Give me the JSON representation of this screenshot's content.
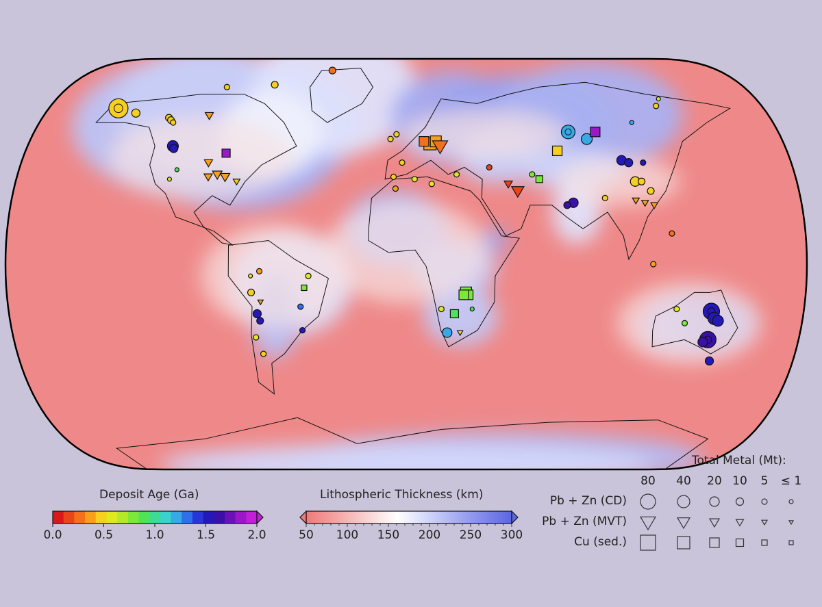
{
  "map": {
    "projection": "Robinson",
    "background_color": "#c9c4d9",
    "regions_thick_lithosphere": [
      "North America",
      "Greenland",
      "Scandinavia",
      "Russia",
      "Siberia",
      "West Africa",
      "Congo",
      "Southern Africa",
      "Amazonia",
      "India",
      "Australia",
      "Antarctica"
    ]
  },
  "legend_age": {
    "title": "Deposit Age (Ga)",
    "ticks": [
      "0.0",
      "0.5",
      "1.0",
      "1.5",
      "2.0"
    ],
    "colors": [
      "#d7191c",
      "#e8451a",
      "#f3711a",
      "#f8a01c",
      "#f6cf1f",
      "#dfe820",
      "#b2ea2a",
      "#7ee83a",
      "#4fe35a",
      "#3ddc94",
      "#3ad2cb",
      "#36a9e6",
      "#2f6fe8",
      "#2836d8",
      "#2418b8",
      "#3a10a8",
      "#6a12b8",
      "#9a18c8",
      "#c020d8"
    ]
  },
  "legend_thickness": {
    "title": "Lithospheric Thickness (km)",
    "ticks": [
      "50",
      "100",
      "150",
      "200",
      "250",
      "300"
    ],
    "colors": [
      "#ef7a7a",
      "#f39a9a",
      "#f7bcbc",
      "#fbdede",
      "#ffffff",
      "#dde0fb",
      "#bbc0f5",
      "#99a0ee",
      "#7a82e8",
      "#5d66e0"
    ]
  },
  "legend_metal": {
    "title": "Total Metal (Mt):",
    "columns": [
      "80",
      "40",
      "20",
      "10",
      "5",
      "≤ 1"
    ],
    "rows": [
      {
        "label": "Pb + Zn (CD)",
        "shape": "circle"
      },
      {
        "label": "Pb + Zn (MVT)",
        "shape": "triangle"
      },
      {
        "label": "Cu (sed.)",
        "shape": "square"
      }
    ]
  },
  "deposits": [
    {
      "shape": "circle",
      "age": 0.45,
      "size": 14,
      "lon": -160,
      "lat": 66
    },
    {
      "shape": "circle",
      "age": 0.45,
      "size": 6,
      "lon": -148,
      "lat": 64
    },
    {
      "shape": "circle",
      "age": 0.4,
      "size": 5,
      "lon": -128,
      "lat": 62
    },
    {
      "shape": "circle",
      "age": 0.4,
      "size": 5,
      "lon": -126,
      "lat": 61
    },
    {
      "shape": "circle",
      "age": 0.4,
      "size": 4,
      "lon": -124,
      "lat": 60
    },
    {
      "shape": "circle",
      "age": 1.5,
      "size": 8,
      "lon": -117,
      "lat": 50
    },
    {
      "shape": "circle",
      "age": 1.5,
      "size": 6,
      "lon": -116,
      "lat": 49
    },
    {
      "shape": "triangle",
      "age": 0.35,
      "size": 6,
      "lon": -107,
      "lat": 63
    },
    {
      "shape": "triangle",
      "age": 0.35,
      "size": 7,
      "lon": -90,
      "lat": 38
    },
    {
      "shape": "triangle",
      "age": 0.35,
      "size": 7,
      "lon": -86,
      "lat": 37
    },
    {
      "shape": "triangle",
      "age": 0.3,
      "size": 6,
      "lon": -94,
      "lat": 37
    },
    {
      "shape": "triangle",
      "age": 0.4,
      "size": 5,
      "lon": -80,
      "lat": 35
    },
    {
      "shape": "square",
      "age": 1.85,
      "size": 6,
      "lon": -89,
      "lat": 47
    },
    {
      "shape": "circle",
      "age": 0.2,
      "size": 5,
      "lon": -48,
      "lat": 82
    },
    {
      "shape": "circle",
      "age": 0.4,
      "size": 5,
      "lon": -80,
      "lat": 76
    },
    {
      "shape": "circle",
      "age": 0.45,
      "size": 4,
      "lon": -108,
      "lat": 75
    },
    {
      "shape": "circle",
      "age": 0.9,
      "size": 3,
      "lon": -110,
      "lat": 40
    },
    {
      "shape": "circle",
      "age": 0.5,
      "size": 3,
      "lon": -112,
      "lat": 36
    },
    {
      "shape": "triangle",
      "age": 0.3,
      "size": 6,
      "lon": -96,
      "lat": 43
    },
    {
      "shape": "square",
      "age": 0.3,
      "size": 9,
      "lon": 12,
      "lat": 51
    },
    {
      "shape": "square",
      "age": 0.3,
      "size": 8,
      "lon": 15,
      "lat": 52
    },
    {
      "shape": "square",
      "age": 0.25,
      "size": 7,
      "lon": 9,
      "lat": 52
    },
    {
      "shape": "triangle",
      "age": 0.2,
      "size": 11,
      "lon": 17,
      "lat": 50
    },
    {
      "shape": "circle",
      "age": 0.4,
      "size": 4,
      "lon": -5,
      "lat": 55
    },
    {
      "shape": "circle",
      "age": 0.4,
      "size": 4,
      "lon": -8,
      "lat": 53
    },
    {
      "shape": "circle",
      "age": 0.4,
      "size": 4,
      "lon": -2,
      "lat": 43
    },
    {
      "shape": "circle",
      "age": 0.4,
      "size": 4,
      "lon": -6,
      "lat": 37
    },
    {
      "shape": "circle",
      "age": 0.3,
      "size": 4,
      "lon": -5,
      "lat": 32
    },
    {
      "shape": "circle",
      "age": 0.1,
      "size": 4,
      "lon": 40,
      "lat": 41
    },
    {
      "shape": "triangle",
      "age": 0.1,
      "size": 9,
      "lon": 52,
      "lat": 31
    },
    {
      "shape": "triangle",
      "age": 0.1,
      "size": 6,
      "lon": 48,
      "lat": 34
    },
    {
      "shape": "circle",
      "age": 0.5,
      "size": 4,
      "lon": 24,
      "lat": 38
    },
    {
      "shape": "circle",
      "age": 0.8,
      "size": 4,
      "lon": 60,
      "lat": 38
    },
    {
      "shape": "square",
      "age": 0.8,
      "size": 5,
      "lon": 63,
      "lat": 36
    },
    {
      "shape": "circle",
      "age": 1.2,
      "size": 10,
      "lon": 84,
      "lat": 56
    },
    {
      "shape": "circle",
      "age": 1.2,
      "size": 8,
      "lon": 92,
      "lat": 53
    },
    {
      "shape": "square",
      "age": 1.85,
      "size": 7,
      "lon": 98,
      "lat": 56
    },
    {
      "shape": "square",
      "age": 0.4,
      "size": 7,
      "lon": 75,
      "lat": 48
    },
    {
      "shape": "circle",
      "age": 1.6,
      "size": 7,
      "lon": 105,
      "lat": 44
    },
    {
      "shape": "circle",
      "age": 1.6,
      "size": 6,
      "lon": 108,
      "lat": 43
    },
    {
      "shape": "circle",
      "age": 1.5,
      "size": 4,
      "lon": 115,
      "lat": 43
    },
    {
      "shape": "circle",
      "age": 0.4,
      "size": 7,
      "lon": 108,
      "lat": 35
    },
    {
      "shape": "circle",
      "age": 0.4,
      "size": 5,
      "lon": 111,
      "lat": 35
    },
    {
      "shape": "circle",
      "age": 0.4,
      "size": 5,
      "lon": 114,
      "lat": 31
    },
    {
      "shape": "triangle",
      "age": 0.3,
      "size": 5,
      "lon": 106,
      "lat": 27
    },
    {
      "shape": "triangle",
      "age": 0.3,
      "size": 5,
      "lon": 110,
      "lat": 26
    },
    {
      "shape": "triangle",
      "age": 0.3,
      "size": 5,
      "lon": 114,
      "lat": 25
    },
    {
      "shape": "circle",
      "age": 1.7,
      "size": 7,
      "lon": 77,
      "lat": 26
    },
    {
      "shape": "circle",
      "age": 1.7,
      "size": 5,
      "lon": 74,
      "lat": 25
    },
    {
      "shape": "circle",
      "age": 0.4,
      "size": 4,
      "lon": 92,
      "lat": 28
    },
    {
      "shape": "circle",
      "age": 0.3,
      "size": 4,
      "lon": 111,
      "lat": 0
    },
    {
      "shape": "circle",
      "age": 0.2,
      "size": 4,
      "lon": 120,
      "lat": 13
    },
    {
      "shape": "circle",
      "age": 1.6,
      "size": 12,
      "lon": 139,
      "lat": -20
    },
    {
      "shape": "circle",
      "age": 1.6,
      "size": 9,
      "lon": 141,
      "lat": -23
    },
    {
      "shape": "circle",
      "age": 1.6,
      "size": 8,
      "lon": 143,
      "lat": -24
    },
    {
      "shape": "circle",
      "age": 1.7,
      "size": 12,
      "lon": 141,
      "lat": -32
    },
    {
      "shape": "circle",
      "age": 1.7,
      "size": 7,
      "lon": 139,
      "lat": -33
    },
    {
      "shape": "circle",
      "age": 1.5,
      "size": 6,
      "lon": 146,
      "lat": -41
    },
    {
      "shape": "circle",
      "age": 0.8,
      "size": 4,
      "lon": 128,
      "lat": -25
    },
    {
      "shape": "circle",
      "age": 0.6,
      "size": 4,
      "lon": 123,
      "lat": -19
    },
    {
      "shape": "square",
      "age": 0.75,
      "size": 8,
      "lon": 27,
      "lat": -12
    },
    {
      "shape": "square",
      "age": 0.75,
      "size": 7,
      "lon": 28,
      "lat": -13
    },
    {
      "shape": "square",
      "age": 0.75,
      "size": 7,
      "lon": 26,
      "lat": -13
    },
    {
      "shape": "square",
      "age": 0.9,
      "size": 6,
      "lon": 22,
      "lat": -21
    },
    {
      "shape": "circle",
      "age": 1.2,
      "size": 7,
      "lon": 19,
      "lat": -29
    },
    {
      "shape": "circle",
      "age": 0.6,
      "size": 4,
      "lon": 16,
      "lat": -19
    },
    {
      "shape": "circle",
      "age": 0.9,
      "size": 3,
      "lon": 30,
      "lat": -19
    },
    {
      "shape": "triangle",
      "age": 0.5,
      "size": 4,
      "lon": 25,
      "lat": -29
    },
    {
      "shape": "circle",
      "age": 1.6,
      "size": 6,
      "lon": -68,
      "lat": -21
    },
    {
      "shape": "circle",
      "age": 1.6,
      "size": 5,
      "lon": -67,
      "lat": -24
    },
    {
      "shape": "circle",
      "age": 0.4,
      "size": 5,
      "lon": -70,
      "lat": -12
    },
    {
      "shape": "circle",
      "age": 1.3,
      "size": 4,
      "lon": -48,
      "lat": -18
    },
    {
      "shape": "circle",
      "age": 0.6,
      "size": 4,
      "lon": -44,
      "lat": -5
    },
    {
      "shape": "square",
      "age": 0.8,
      "size": 4,
      "lon": -46,
      "lat": -10
    },
    {
      "shape": "circle",
      "age": 1.6,
      "size": 4,
      "lon": -48,
      "lat": -28
    },
    {
      "shape": "circle",
      "age": 0.6,
      "size": 4,
      "lon": -70,
      "lat": -31
    },
    {
      "shape": "circle",
      "age": 0.3,
      "size": 4,
      "lon": -66,
      "lat": -3
    },
    {
      "shape": "circle",
      "age": 0.4,
      "size": 4,
      "lon": -68,
      "lat": -38
    },
    {
      "shape": "triangle",
      "age": 0.3,
      "size": 4,
      "lon": -66,
      "lat": -16
    },
    {
      "shape": "circle",
      "age": 0.5,
      "size": 3,
      "lon": -70,
      "lat": -5
    },
    {
      "shape": "circle",
      "age": 0.5,
      "size": 4,
      "lon": 12,
      "lat": 34
    },
    {
      "shape": "circle",
      "age": 0.5,
      "size": 4,
      "lon": 4,
      "lat": 36
    },
    {
      "shape": "circle",
      "age": 0.4,
      "size": 4,
      "lon": 140,
      "lat": 67
    },
    {
      "shape": "circle",
      "age": 1.2,
      "size": 3,
      "lon": 120,
      "lat": 60
    },
    {
      "shape": "circle",
      "age": 0.6,
      "size": 3,
      "lon": 145,
      "lat": 70
    }
  ]
}
